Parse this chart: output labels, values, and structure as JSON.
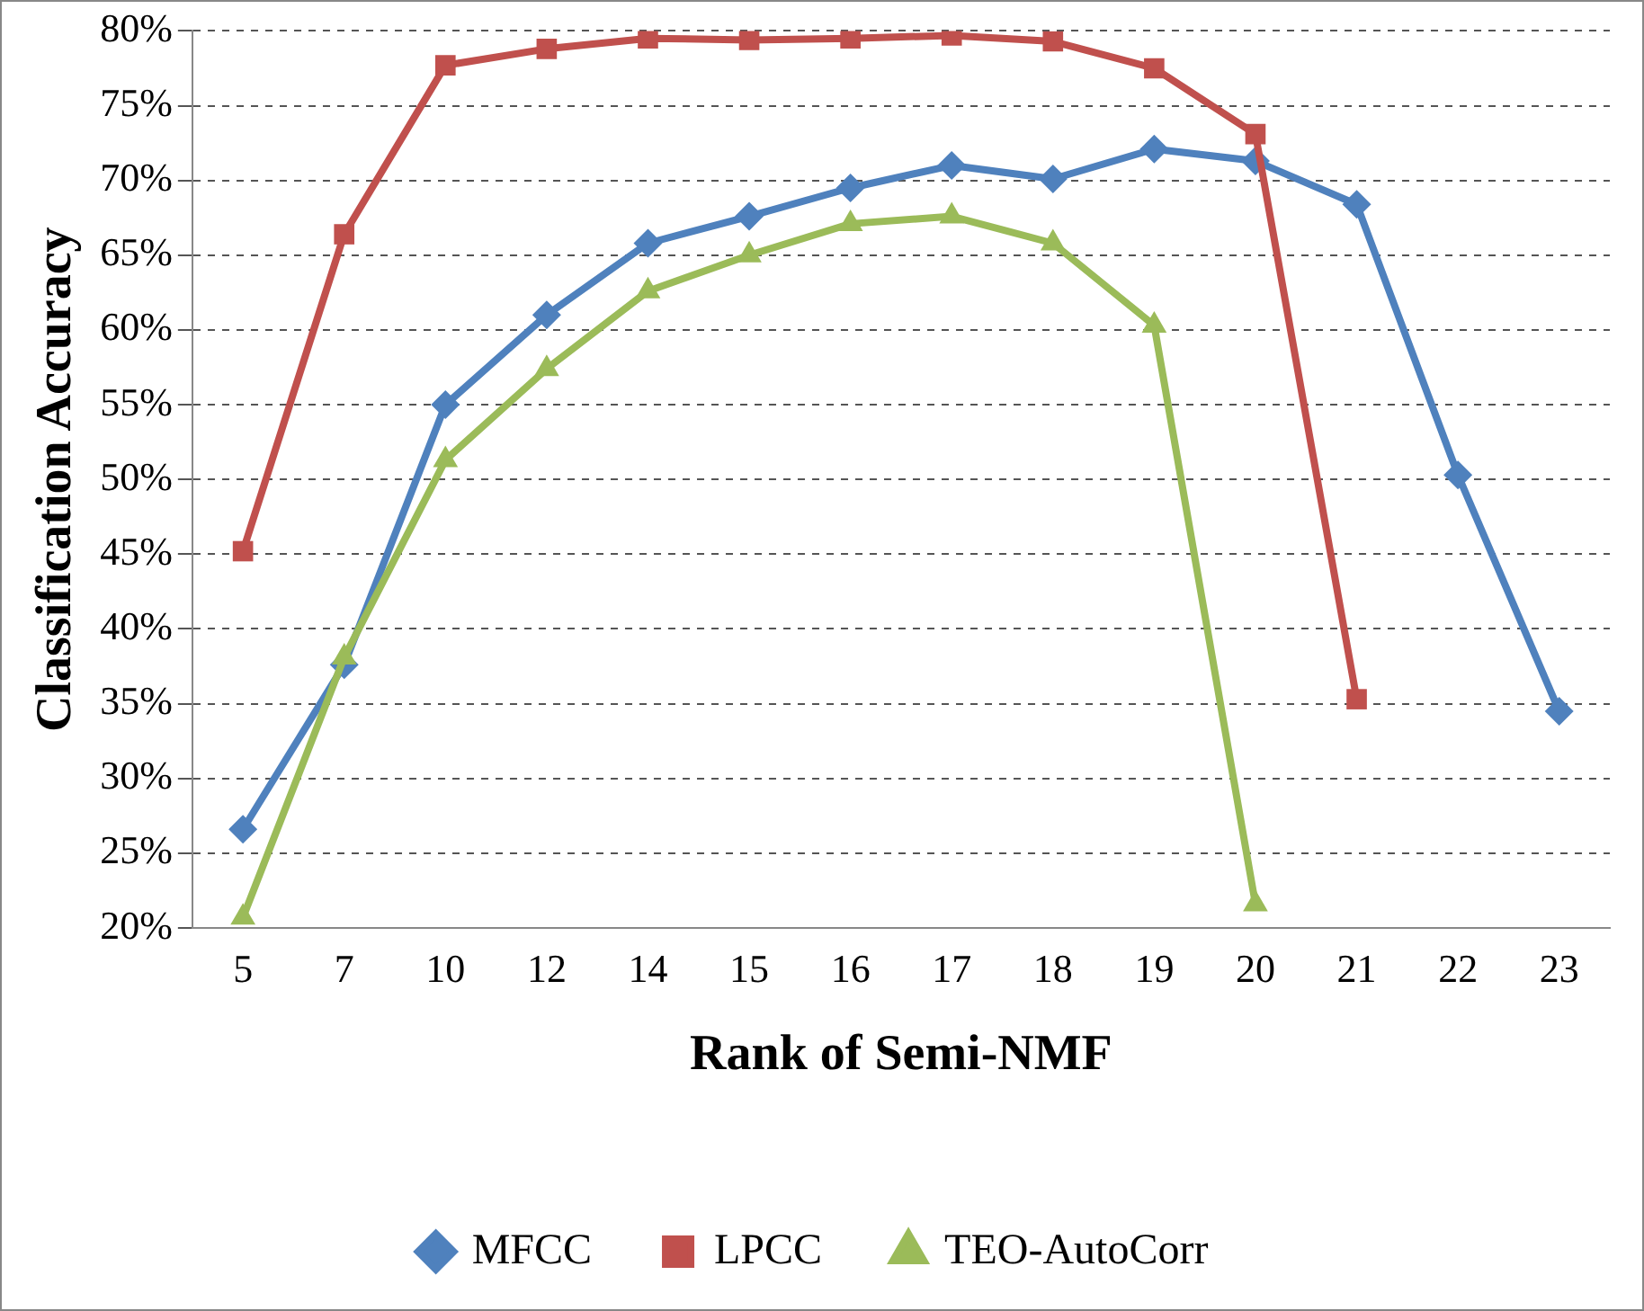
{
  "chart_data": {
    "type": "line",
    "xlabel": "Rank of Semi-NMF",
    "ylabel": "Classification Accuracy",
    "categories": [
      "5",
      "7",
      "10",
      "12",
      "14",
      "15",
      "16",
      "17",
      "18",
      "19",
      "20",
      "21",
      "22",
      "23"
    ],
    "series": [
      {
        "name": "MFCC",
        "color": "#4f81bd",
        "marker": "diamond",
        "values": [
          26.6,
          37.6,
          55.0,
          61.0,
          65.8,
          67.6,
          69.5,
          71.0,
          70.1,
          72.1,
          71.3,
          68.4,
          50.3,
          34.5
        ]
      },
      {
        "name": "LPCC",
        "color": "#c0504d",
        "marker": "square",
        "values": [
          45.2,
          66.4,
          77.7,
          78.8,
          79.5,
          79.4,
          79.5,
          79.7,
          79.3,
          77.5,
          73.1,
          35.3,
          null,
          null
        ]
      },
      {
        "name": "TEO-AutoCorr",
        "color": "#9bbb59",
        "marker": "triangle",
        "values": [
          20.7,
          38.1,
          51.3,
          57.4,
          62.6,
          65.0,
          67.1,
          67.6,
          65.8,
          60.3,
          21.6,
          null,
          null,
          null
        ]
      }
    ],
    "ylim": [
      20,
      80
    ],
    "yticks": [
      {
        "value": 20,
        "label": "20%"
      },
      {
        "value": 25,
        "label": "25%"
      },
      {
        "value": 30,
        "label": "30%"
      },
      {
        "value": 35,
        "label": "35%"
      },
      {
        "value": 40,
        "label": "40%"
      },
      {
        "value": 45,
        "label": "45%"
      },
      {
        "value": 50,
        "label": "50%"
      },
      {
        "value": 55,
        "label": "55%"
      },
      {
        "value": 60,
        "label": "60%"
      },
      {
        "value": 65,
        "label": "65%"
      },
      {
        "value": 70,
        "label": "70%"
      },
      {
        "value": 75,
        "label": "75%"
      },
      {
        "value": 80,
        "label": "80%"
      }
    ],
    "grid": "y",
    "legend": "bottom",
    "line_style": "solid"
  }
}
